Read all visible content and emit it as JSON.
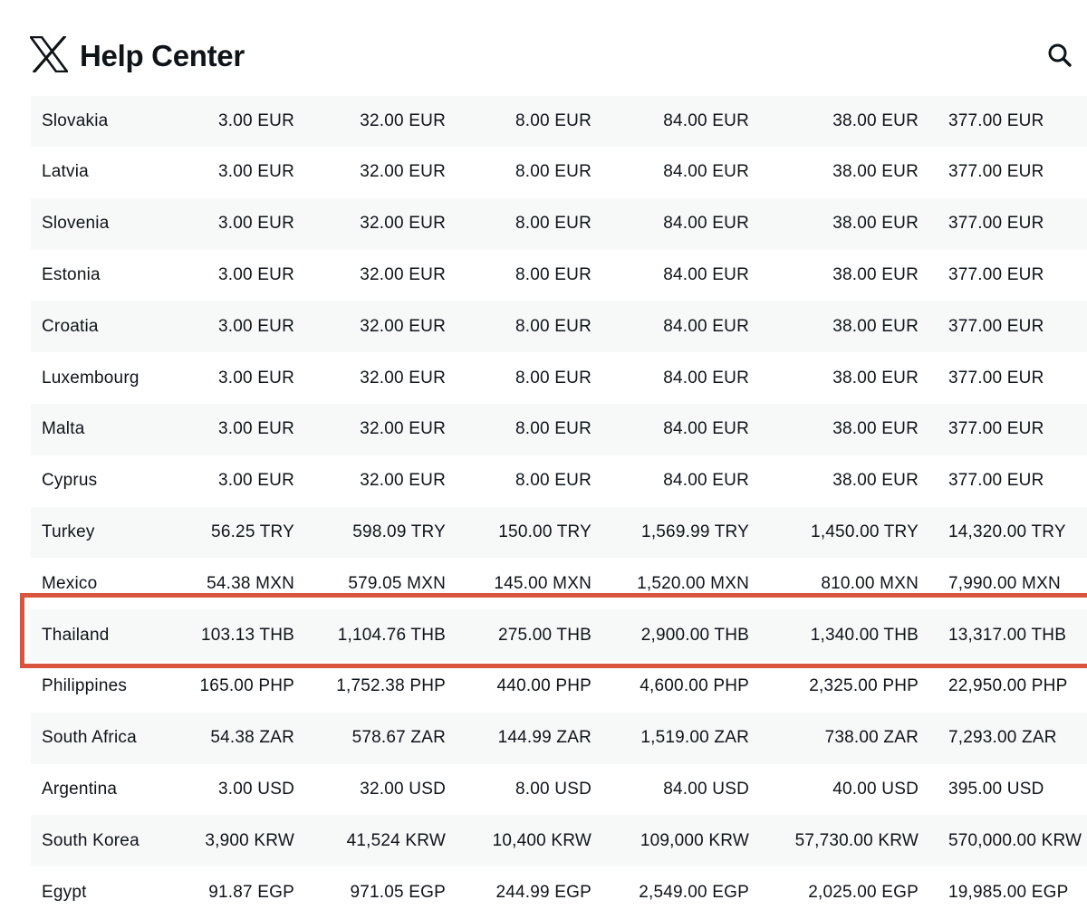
{
  "header": {
    "brand": "Help Center",
    "logo_icon": "x-logo-icon",
    "search_icon": "search-icon"
  },
  "highlight": {
    "row": "Thailand",
    "color": "#d9553f"
  },
  "table": {
    "rows": [
      {
        "country": "Slovakia",
        "values": [
          "3.00 EUR",
          "32.00 EUR",
          "8.00 EUR",
          "84.00 EUR",
          "38.00 EUR",
          "377.00 EUR"
        ]
      },
      {
        "country": "Latvia",
        "values": [
          "3.00 EUR",
          "32.00 EUR",
          "8.00 EUR",
          "84.00 EUR",
          "38.00 EUR",
          "377.00 EUR"
        ]
      },
      {
        "country": "Slovenia",
        "values": [
          "3.00 EUR",
          "32.00 EUR",
          "8.00 EUR",
          "84.00 EUR",
          "38.00 EUR",
          "377.00 EUR"
        ]
      },
      {
        "country": "Estonia",
        "values": [
          "3.00 EUR",
          "32.00 EUR",
          "8.00 EUR",
          "84.00 EUR",
          "38.00 EUR",
          "377.00 EUR"
        ]
      },
      {
        "country": "Croatia",
        "values": [
          "3.00 EUR",
          "32.00 EUR",
          "8.00 EUR",
          "84.00 EUR",
          "38.00 EUR",
          "377.00 EUR"
        ]
      },
      {
        "country": "Luxembourg",
        "values": [
          "3.00 EUR",
          "32.00 EUR",
          "8.00 EUR",
          "84.00 EUR",
          "38.00 EUR",
          "377.00 EUR"
        ]
      },
      {
        "country": "Malta",
        "values": [
          "3.00 EUR",
          "32.00 EUR",
          "8.00 EUR",
          "84.00 EUR",
          "38.00 EUR",
          "377.00 EUR"
        ]
      },
      {
        "country": "Cyprus",
        "values": [
          "3.00 EUR",
          "32.00 EUR",
          "8.00 EUR",
          "84.00 EUR",
          "38.00 EUR",
          "377.00 EUR"
        ]
      },
      {
        "country": "Turkey",
        "values": [
          "56.25 TRY",
          "598.09 TRY",
          "150.00 TRY",
          "1,569.99 TRY",
          "1,450.00 TRY",
          "14,320.00 TRY"
        ]
      },
      {
        "country": "Mexico",
        "values": [
          "54.38 MXN",
          "579.05 MXN",
          "145.00 MXN",
          "1,520.00 MXN",
          "810.00 MXN",
          "7,990.00 MXN"
        ]
      },
      {
        "country": "Thailand",
        "values": [
          "103.13 THB",
          "1,104.76 THB",
          "275.00 THB",
          "2,900.00 THB",
          "1,340.00 THB",
          "13,317.00 THB"
        ]
      },
      {
        "country": "Philippines",
        "values": [
          "165.00 PHP",
          "1,752.38 PHP",
          "440.00 PHP",
          "4,600.00 PHP",
          "2,325.00 PHP",
          "22,950.00 PHP"
        ]
      },
      {
        "country": "South Africa",
        "values": [
          "54.38 ZAR",
          "578.67 ZAR",
          "144.99 ZAR",
          "1,519.00 ZAR",
          "738.00 ZAR",
          "7,293.00 ZAR"
        ]
      },
      {
        "country": "Argentina",
        "values": [
          "3.00 USD",
          "32.00 USD",
          "8.00 USD",
          "84.00 USD",
          "40.00 USD",
          "395.00 USD"
        ]
      },
      {
        "country": "South Korea",
        "values": [
          "3,900 KRW",
          "41,524 KRW",
          "10,400 KRW",
          "109,000 KRW",
          "57,730.00 KRW",
          "570,000.00 KRW"
        ]
      },
      {
        "country": "Egypt",
        "values": [
          "91.87 EGP",
          "971.05 EGP",
          "244.99 EGP",
          "2,549.00 EGP",
          "2,025.00 EGP",
          "19,985.00 EGP"
        ]
      }
    ]
  }
}
